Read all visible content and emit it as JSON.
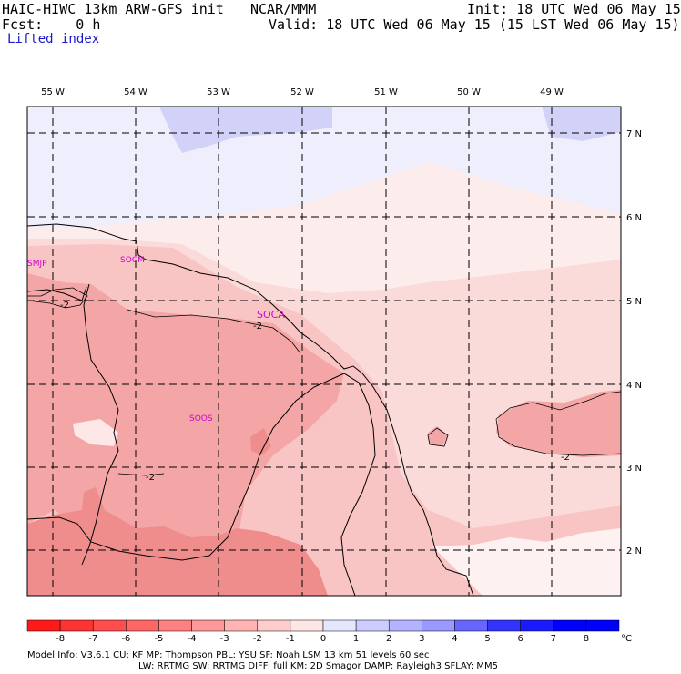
{
  "header": {
    "model_line": "HAIC-HIWC 13km ARW-GFS init",
    "org": "NCAR/MMM",
    "init": "Init: 18 UTC Wed 06 May 15",
    "fcst": "Fcst:    0 h",
    "valid": "Valid: 18 UTC Wed 06 May 15 (15 LST Wed 06 May 15)",
    "field": "Lifted index"
  },
  "map": {
    "lon_labels": [
      "55 W",
      "54 W",
      "53 W",
      "52 W",
      "51 W",
      "50 W",
      "49 W"
    ],
    "lat_labels": [
      "7 N",
      "6 N",
      "5 N",
      "4 N",
      "3 N",
      "2 N"
    ],
    "stations": [
      "SMJP",
      "SOCM",
      "SOCA",
      "SOOS"
    ],
    "contour_labels": [
      "-2",
      "-2",
      "-2",
      "-2"
    ]
  },
  "colorbar": {
    "ticks": [
      "-8",
      "-7",
      "-6",
      "-5",
      "-4",
      "-3",
      "-2",
      "-1",
      "0",
      "1",
      "2",
      "3",
      "4",
      "5",
      "6",
      "7",
      "8"
    ],
    "unit": "°C",
    "colors": [
      "#ff1a1a",
      "#ff3333",
      "#ff4d4d",
      "#ff6666",
      "#ff8080",
      "#ff9999",
      "#ffb3b3",
      "#ffcccc",
      "#ffe6e6",
      "#e6e6ff",
      "#ccccff",
      "#b3b3ff",
      "#9999ff",
      "#6666ff",
      "#3333ff",
      "#1a1aff",
      "#0000ff"
    ]
  },
  "footer": {
    "line1": "Model Info: V3.6.1    CU: KF        MP: Thompson      PBL: YSU        SF: Noah LSM     13 km    51 levels   60 sec",
    "line2": "LW: RRTMG    SW: RRTMG   DIFF: full    KM: 2D Smagor  DAMP: Rayleigh3   SFLAY: MM5"
  }
}
